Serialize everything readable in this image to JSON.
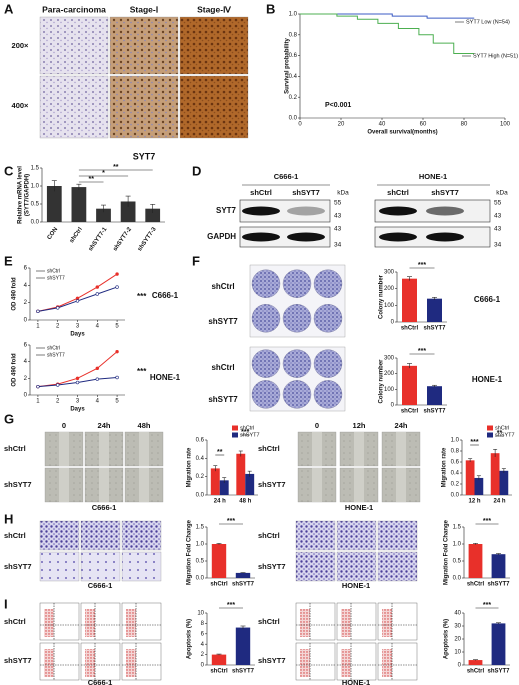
{
  "labels": [
    "A",
    "B",
    "C",
    "D",
    "E",
    "F",
    "G",
    "H",
    "I",
    "Para-carcinoma",
    "Stage-Ⅰ",
    "Stage-Ⅳ",
    "200×",
    "400×",
    "SYT7",
    "C666-1",
    "HONE-1",
    "shCtrl",
    "shSYT7",
    "kDa",
    "shCtrl",
    "shSYT7",
    "kDa",
    "SYT7",
    "GAPDH",
    55,
    43,
    43,
    34,
    55,
    43,
    43,
    34,
    "shCtrl",
    "shSYT7",
    "shCtrl",
    "shSYT7",
    0,
    "24h",
    "48h",
    "shCtrl",
    "shSYT7",
    "C666-1",
    0,
    "12h",
    "24h",
    "shCtrl",
    "shSYT7",
    "HONE-1",
    "shCtrl",
    "shSYT7",
    "C666-1",
    "shCtrl",
    "shSYT7",
    "HONE-1",
    "shCtrl",
    "shSYT7",
    "C666-1",
    "shCtrl",
    "shSYT7",
    "HONE-1"
  ],
  "chart_data": [
    {
      "type": "line",
      "ylabel": "Survival probability",
      "xlabel": "Overall survival(months)",
      "markers": false,
      "xlim": [
        0,
        100
      ],
      "xticks": [
        0,
        20,
        40,
        60,
        80,
        100
      ],
      "ylim": [
        0,
        1
      ],
      "yticks": [
        {
          "value": 0,
          "label": "0.0"
        },
        {
          "value": 0.2,
          "label": "0.2"
        },
        {
          "value": 0.4,
          "label": "0.4"
        },
        {
          "value": 0.6,
          "label": "0.6"
        },
        {
          "value": 0.8,
          "label": "0.8"
        },
        {
          "value": 1,
          "label": "1.0"
        }
      ],
      "series": [
        {
          "name": "SYT7 Low (N=54)",
          "color": "#3b5bc4",
          "x": [
            0,
            45,
            45,
            62,
            62,
            85
          ],
          "values": [
            1,
            1,
            0.98,
            0.98,
            0.96,
            0.96
          ]
        },
        {
          "name": "SYT7 High (N=51)",
          "color": "#4caf50",
          "x": [
            0,
            18,
            18,
            28,
            28,
            38,
            38,
            48,
            48,
            58,
            58,
            65,
            65,
            75,
            75,
            85
          ],
          "values": [
            1,
            1,
            0.98,
            0.98,
            0.95,
            0.95,
            0.91,
            0.91,
            0.86,
            0.86,
            0.8,
            0.8,
            0.72,
            0.72,
            0.62,
            0.62
          ]
        }
      ],
      "annotations": [
        "P<0.001"
      ]
    },
    {
      "type": "bar",
      "ylabel": [
        "Relative mRNA level",
        "(SYT7/GAPDH)"
      ],
      "categories": [
        "CON",
        "shCtrl",
        "shSYT7-1",
        "shSYT7-2",
        "shSYT7-3"
      ],
      "values": [
        1,
        0.97,
        0.37,
        0.57,
        0.37
      ],
      "errors": [
        0.15,
        0.08,
        0.1,
        0.15,
        0.12
      ],
      "color": "#333333",
      "ylim": [
        0,
        1.5
      ],
      "yticks": [
        {
          "value": 0,
          "label": "0.0"
        },
        {
          "value": 0.5,
          "label": "0.5"
        },
        {
          "value": 1,
          "label": "1.0"
        },
        {
          "value": 1.5,
          "label": "1.5"
        }
      ],
      "annotations": [
        "**",
        "*",
        "**"
      ]
    },
    {
      "type": "line",
      "title": "C666-1",
      "ylabel": "OD 490 fold",
      "xlabel": "Days",
      "markers": true,
      "x": [
        1,
        2,
        3,
        4,
        5
      ],
      "xlim": [
        0.6,
        5.4
      ],
      "xticks": [
        1,
        2,
        3,
        4,
        5
      ],
      "ylim": [
        0,
        6
      ],
      "yticks": [
        0,
        2,
        4,
        6
      ],
      "series": [
        {
          "name": "shCtrl",
          "color": "#e8302a",
          "values": [
            1,
            1.5,
            2.5,
            3.8,
            5.3
          ]
        },
        {
          "name": "shSYT7",
          "color": "#1f2a80",
          "values": [
            1,
            1.4,
            2.2,
            3,
            3.8
          ]
        }
      ],
      "annotations": [
        "***"
      ]
    },
    {
      "type": "line",
      "title": "HONE-1",
      "ylabel": "OD 490 fold",
      "xlabel": "Days",
      "markers": true,
      "x": [
        1,
        2,
        3,
        4,
        5
      ],
      "xlim": [
        0.6,
        5.4
      ],
      "xticks": [
        1,
        2,
        3,
        4,
        5
      ],
      "ylim": [
        0,
        6
      ],
      "yticks": [
        0,
        2,
        4,
        6
      ],
      "series": [
        {
          "name": "shCtrl",
          "color": "#e8302a",
          "values": [
            1,
            1.3,
            2,
            3.2,
            5.2
          ]
        },
        {
          "name": "shSYT7",
          "color": "#1f2a80",
          "values": [
            1,
            1.2,
            1.5,
            1.9,
            2.1
          ]
        }
      ],
      "annotations": [
        "***"
      ]
    },
    {
      "type": "bar",
      "title": "C666-1",
      "ylabel": "Colony number",
      "categories": [
        "shCtrl",
        "shSYT7"
      ],
      "values": [
        260,
        140
      ],
      "errors": [
        12,
        8
      ],
      "colors": [
        "#e8302a",
        "#1f2a80"
      ],
      "ylim": [
        0,
        300
      ],
      "yticks": [
        0,
        100,
        200,
        300
      ],
      "annotations": [
        "***"
      ]
    },
    {
      "type": "bar",
      "title": "HONE-1",
      "ylabel": "Colony number",
      "categories": [
        "shCtrl",
        "shSYT7"
      ],
      "values": [
        250,
        120
      ],
      "errors": [
        15,
        6
      ],
      "colors": [
        "#e8302a",
        "#1f2a80"
      ],
      "ylim": [
        0,
        300
      ],
      "yticks": [
        0,
        100,
        200,
        300
      ],
      "annotations": [
        "***"
      ]
    },
    {
      "type": "bar",
      "ylabel": "Migration rate",
      "categories": [
        "24 h",
        "48 h"
      ],
      "series": [
        {
          "name": "shCtrl",
          "color": "#e8302a",
          "values": [
            0.29,
            0.45
          ],
          "errors": [
            0.03,
            0.03
          ]
        },
        {
          "name": "shSYT7",
          "color": "#1f2a80",
          "values": [
            0.16,
            0.23
          ],
          "errors": [
            0.03,
            0.03
          ]
        }
      ],
      "ylim": [
        0,
        0.6
      ],
      "yticks": [
        {
          "value": 0,
          "label": "0.0"
        },
        {
          "value": 0.2,
          "label": "0.2"
        },
        {
          "value": 0.4,
          "label": "0.4"
        },
        {
          "value": 0.6,
          "label": "0.6"
        }
      ],
      "annotations": [
        "**",
        "***"
      ]
    },
    {
      "type": "bar",
      "ylabel": "Migration rate",
      "categories": [
        "12 h",
        "24 h"
      ],
      "series": [
        {
          "name": "shCtrl",
          "color": "#e8302a",
          "values": [
            0.63,
            0.76
          ],
          "errors": [
            0.03,
            0.07
          ]
        },
        {
          "name": "shSYT7",
          "color": "#1f2a80",
          "values": [
            0.31,
            0.44
          ],
          "errors": [
            0.04,
            0.04
          ]
        }
      ],
      "ylim": [
        0,
        1
      ],
      "yticks": [
        {
          "value": 0,
          "label": "0.0"
        },
        {
          "value": 0.2,
          "label": "0.2"
        },
        {
          "value": 0.4,
          "label": "0.4"
        },
        {
          "value": 0.6,
          "label": "0.6"
        },
        {
          "value": 0.8,
          "label": "0.8"
        },
        {
          "value": 1,
          "label": "1.0"
        }
      ],
      "annotations": [
        "***",
        "**"
      ]
    },
    {
      "type": "bar",
      "ylabel": "Migration Fold Change",
      "categories": [
        "shCtrl",
        "shSYT7"
      ],
      "values": [
        1,
        0.15
      ],
      "errors": [
        0.02,
        0.01
      ],
      "colors": [
        "#e8302a",
        "#1f2a80"
      ],
      "ylim": [
        0,
        1.5
      ],
      "yticks": [
        {
          "value": 0,
          "label": "0.0"
        },
        {
          "value": 0.5,
          "label": "0.5"
        },
        {
          "value": 1,
          "label": "1.0"
        },
        {
          "value": 1.5,
          "label": "1.5"
        }
      ],
      "annotations": [
        "***"
      ]
    },
    {
      "type": "bar",
      "ylabel": "Migration Fold Change",
      "categories": [
        "shCtrl",
        "shSYT7"
      ],
      "values": [
        1,
        0.7
      ],
      "errors": [
        0.02,
        0.02
      ],
      "colors": [
        "#e8302a",
        "#1f2a80"
      ],
      "ylim": [
        0,
        1.5
      ],
      "yticks": [
        {
          "value": 0,
          "label": "0.0"
        },
        {
          "value": 0.5,
          "label": "0.5"
        },
        {
          "value": 1,
          "label": "1.0"
        },
        {
          "value": 1.5,
          "label": "1.5"
        }
      ],
      "annotations": [
        "***"
      ]
    },
    {
      "type": "bar",
      "ylabel": "Apoptosis (%)",
      "categories": [
        "shCtrl",
        "shSYT7"
      ],
      "values": [
        2,
        7.2
      ],
      "errors": [
        0.1,
        0.3
      ],
      "colors": [
        "#e8302a",
        "#1f2a80"
      ],
      "ylim": [
        0,
        10
      ],
      "yticks": [
        0,
        2,
        4,
        6,
        8,
        10
      ],
      "annotations": [
        "***"
      ]
    },
    {
      "type": "bar",
      "ylabel": "Apoptosis (%)",
      "categories": [
        "shCtrl",
        "shSYT7"
      ],
      "values": [
        3.8,
        32
      ],
      "errors": [
        0.3,
        0.5
      ],
      "colors": [
        "#e8302a",
        "#1f2a80"
      ],
      "ylim": [
        0,
        40
      ],
      "yticks": [
        0,
        10,
        20,
        30,
        40
      ],
      "annotations": [
        "***"
      ]
    }
  ]
}
